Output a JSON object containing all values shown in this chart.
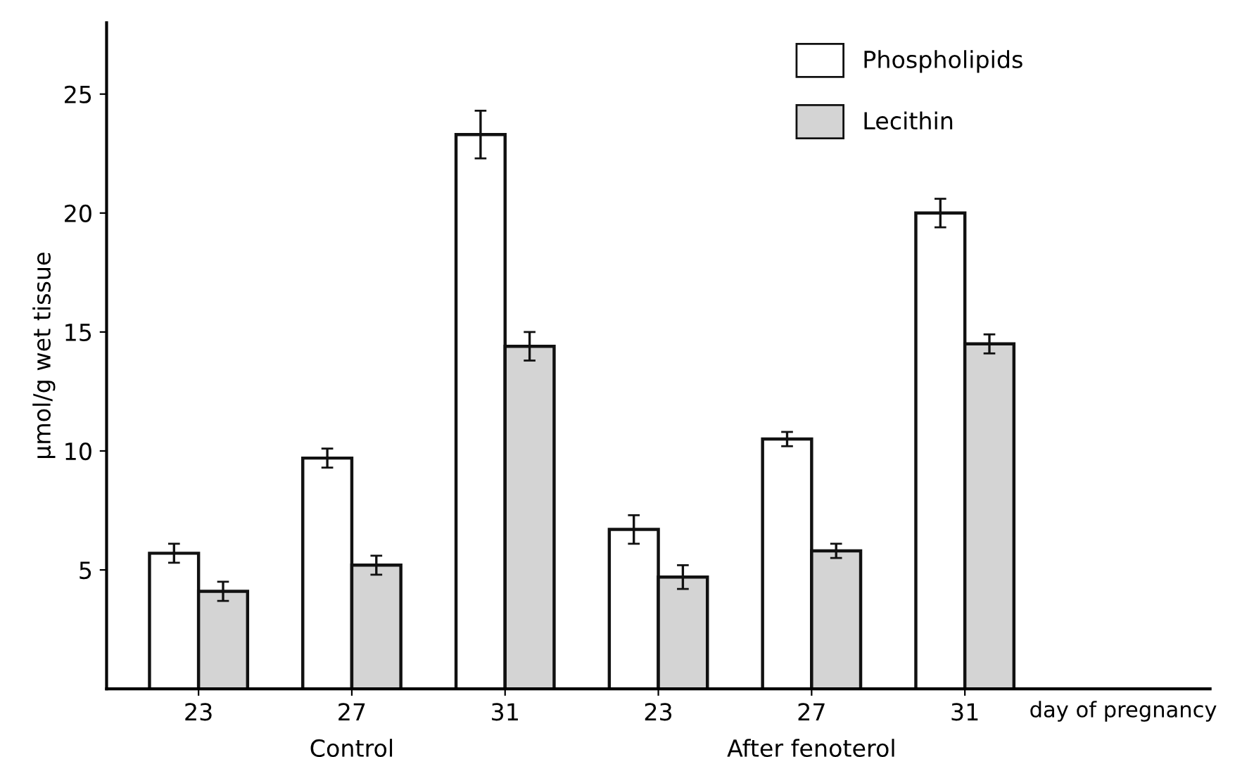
{
  "chart_data": {
    "type": "bar",
    "ylabel": "μmol/g wet tissue",
    "xlabel": "day of pregnancy",
    "categories": [
      "23",
      "27",
      "31",
      "23",
      "27",
      "31"
    ],
    "series": [
      {
        "name": "Phospholipids",
        "color": "#ffffff",
        "values": [
          5.7,
          9.7,
          23.3,
          6.7,
          10.5,
          20.0
        ],
        "errors": [
          0.4,
          0.4,
          1.0,
          0.6,
          0.3,
          0.6
        ]
      },
      {
        "name": "Lecithin",
        "color": "#d4d4d4",
        "values": [
          4.1,
          5.2,
          14.4,
          4.7,
          5.8,
          14.5
        ],
        "errors": [
          0.4,
          0.4,
          0.6,
          0.5,
          0.3,
          0.4
        ]
      }
    ],
    "annotations": [
      "Control",
      "After fenoterol"
    ],
    "ylim": [
      0,
      28
    ],
    "yticks": [
      5,
      10,
      15,
      20,
      25
    ],
    "grid": false,
    "legend": "top right"
  }
}
